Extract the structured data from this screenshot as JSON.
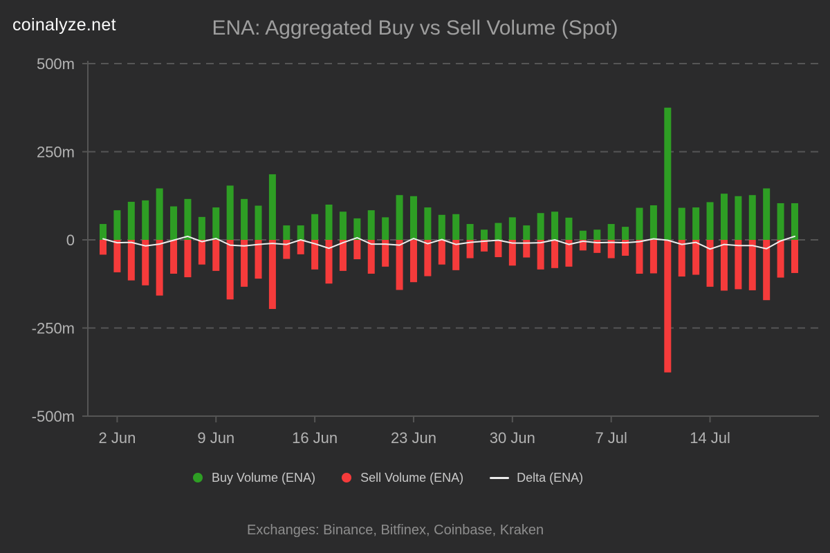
{
  "header": {
    "logo": "coinalyze.net",
    "title": "ENA: Aggregated Buy vs Sell Volume (Spot)"
  },
  "legend": {
    "buy_label": "Buy Volume (ENA)",
    "sell_label": "Sell Volume (ENA)",
    "delta_label": "Delta (ENA)"
  },
  "footer": {
    "exchanges": "Exchanges: Binance, Bitfinex, Coinbase, Kraken"
  },
  "colors": {
    "background": "#2b2b2c",
    "buy": "#2e9e24",
    "sell": "#f53b3b",
    "delta": "#ededed",
    "grid": "#565656",
    "axis": "#555555",
    "axis_text": "#b3b3b3",
    "title_text": "#9e9e9e",
    "legend_text": "#c9c9c9",
    "footer_text": "#8d8d8d",
    "logo_text": "#fafafa"
  },
  "chart_data": {
    "type": "bar",
    "title": "ENA: Aggregated Buy vs Sell Volume (Spot)",
    "xlabel": "",
    "ylabel": "",
    "unit": "millions",
    "ylim": [
      -500,
      500
    ],
    "grid": "dashed-horizontal",
    "legend_position": "bottom",
    "y_ticks": [
      {
        "label": "500m",
        "value": 500
      },
      {
        "label": "250m",
        "value": 250
      },
      {
        "label": "0",
        "value": 0
      },
      {
        "label": "-250m",
        "value": -250
      },
      {
        "label": "-500m",
        "value": -500
      }
    ],
    "x_ticks": [
      {
        "index": 1,
        "label": "2 Jun"
      },
      {
        "index": 8,
        "label": "9 Jun"
      },
      {
        "index": 15,
        "label": "16 Jun"
      },
      {
        "index": 22,
        "label": "23 Jun"
      },
      {
        "index": 29,
        "label": "30 Jun"
      },
      {
        "index": 36,
        "label": "7 Jul"
      },
      {
        "index": 43,
        "label": "14 Jul"
      }
    ],
    "categories": [
      "1 Jun",
      "2 Jun",
      "3 Jun",
      "4 Jun",
      "5 Jun",
      "6 Jun",
      "7 Jun",
      "8 Jun",
      "9 Jun",
      "10 Jun",
      "11 Jun",
      "12 Jun",
      "13 Jun",
      "14 Jun",
      "15 Jun",
      "16 Jun",
      "17 Jun",
      "18 Jun",
      "19 Jun",
      "20 Jun",
      "21 Jun",
      "22 Jun",
      "23 Jun",
      "24 Jun",
      "25 Jun",
      "26 Jun",
      "27 Jun",
      "28 Jun",
      "29 Jun",
      "30 Jun",
      "1 Jul",
      "2 Jul",
      "3 Jul",
      "4 Jul",
      "5 Jul",
      "6 Jul",
      "7 Jul",
      "8 Jul",
      "9 Jul",
      "10 Jul",
      "11 Jul",
      "12 Jul",
      "13 Jul",
      "14 Jul",
      "15 Jul",
      "16 Jul",
      "17 Jul",
      "18 Jul",
      "19 Jul",
      "20 Jul"
    ],
    "series": [
      {
        "name": "Buy Volume (ENA)",
        "color": "#2e9e24",
        "values": [
          45,
          84,
          108,
          112,
          146,
          95,
          116,
          65,
          92,
          154,
          116,
          97,
          186,
          41,
          41,
          73,
          100,
          80,
          61,
          84,
          64,
          127,
          124,
          92,
          71,
          73,
          45,
          29,
          48,
          64,
          41,
          76,
          80,
          63,
          26,
          29,
          45,
          37,
          91,
          98,
          375,
          91,
          92,
          107,
          131,
          124,
          127,
          146,
          104,
          104
        ]
      },
      {
        "name": "Sell Volume (ENA)",
        "color": "#f53b3b",
        "values": [
          -42,
          -92,
          -115,
          -129,
          -158,
          -96,
          -106,
          -70,
          -88,
          -169,
          -133,
          -110,
          -196,
          -54,
          -41,
          -84,
          -124,
          -88,
          -55,
          -96,
          -76,
          -142,
          -120,
          -103,
          -70,
          -86,
          -52,
          -33,
          -49,
          -73,
          -50,
          -84,
          -80,
          -76,
          -30,
          -37,
          -52,
          -45,
          -96,
          -95,
          -376,
          -104,
          -99,
          -133,
          -144,
          -140,
          -143,
          -171,
          -107,
          -94
        ]
      },
      {
        "name": "Delta (ENA)",
        "color": "#ededed",
        "values": [
          3,
          -8,
          -7,
          -17,
          -12,
          -1,
          10,
          -5,
          4,
          -15,
          -17,
          -13,
          -10,
          -13,
          0,
          -11,
          -24,
          -8,
          6,
          -12,
          -12,
          -15,
          4,
          -11,
          1,
          -13,
          -7,
          -4,
          -1,
          -9,
          -9,
          -8,
          0,
          -13,
          -4,
          -8,
          -7,
          -8,
          -5,
          3,
          -1,
          -13,
          -7,
          -26,
          -13,
          -16,
          -16,
          -25,
          -3,
          10
        ]
      }
    ]
  }
}
